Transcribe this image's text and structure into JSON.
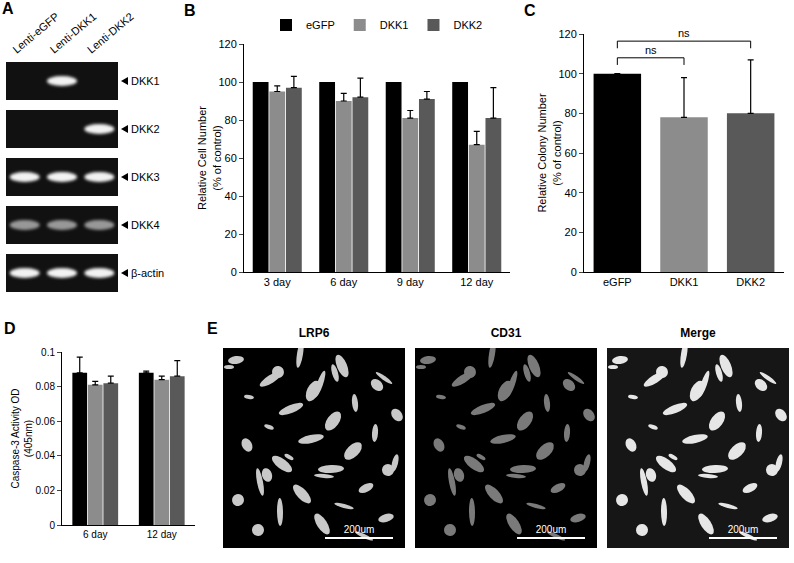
{
  "chart_data": [
    {
      "panel": "B",
      "type": "bar",
      "categories": [
        "3 day",
        "6 day",
        "9 day",
        "12 day"
      ],
      "series": [
        {
          "name": "eGFP",
          "color": "#000000",
          "values": [
            100,
            100,
            100,
            100
          ]
        },
        {
          "name": "DKK1",
          "color": "#8c8c8c",
          "values": [
            95,
            90,
            81,
            67
          ],
          "errors": [
            3,
            4,
            4,
            7
          ]
        },
        {
          "name": "DKK2",
          "color": "#595959",
          "values": [
            97,
            92,
            91,
            81
          ],
          "errors": [
            6,
            10,
            4,
            16
          ]
        }
      ],
      "ylabel": [
        "Relative Cell Number",
        "(% of control)"
      ],
      "ylim": [
        0,
        120
      ],
      "yticks": [
        0,
        20,
        40,
        60,
        80,
        100,
        120
      ],
      "legend": "top"
    },
    {
      "panel": "C",
      "type": "bar",
      "categories": [
        "eGFP",
        "DKK1",
        "DKK2"
      ],
      "values": [
        100,
        78,
        80
      ],
      "errors": [
        null,
        20,
        27
      ],
      "colors": [
        "#000000",
        "#8c8c8c",
        "#595959"
      ],
      "ylabel": [
        "Relative Colony Number",
        "(% of control)"
      ],
      "ylim": [
        0,
        120
      ],
      "yticks": [
        0,
        20,
        40,
        60,
        80,
        100,
        120
      ],
      "comparisons": [
        {
          "from": "eGFP",
          "to": "DKK1",
          "label": "ns"
        },
        {
          "from": "eGFP",
          "to": "DKK2",
          "label": "ns"
        }
      ]
    },
    {
      "panel": "D",
      "type": "bar",
      "categories": [
        "6 day",
        "12 day"
      ],
      "series": [
        {
          "color": "#000000",
          "values": [
            0.088,
            0.088
          ],
          "errors": [
            0.009,
            0.001
          ]
        },
        {
          "color": "#8c8c8c",
          "values": [
            0.081,
            0.084
          ],
          "errors": [
            0.002,
            0.002
          ]
        },
        {
          "color": "#595959",
          "values": [
            0.082,
            0.086
          ],
          "errors": [
            0.004,
            0.009
          ]
        }
      ],
      "ylabel": [
        "Caspase-3 Activity OD",
        "(405nm)"
      ],
      "ylim": [
        0,
        0.1
      ],
      "yticks": [
        0,
        0.02,
        0.04,
        0.06,
        0.08,
        0.1
      ]
    }
  ],
  "gel": {
    "panel": "A",
    "lanes": [
      "Lenti-eGFP",
      "Lenti-DKK1",
      "Lenti-DKK2"
    ],
    "rows": [
      {
        "label": "DKK1",
        "intensity": [
          0,
          1,
          0
        ]
      },
      {
        "label": "DKK2",
        "intensity": [
          0,
          0,
          1
        ]
      },
      {
        "label": "DKK3",
        "intensity": [
          1,
          1,
          1
        ]
      },
      {
        "label": "DKK4",
        "intensity": [
          0.6,
          0.6,
          0.6
        ]
      },
      {
        "label": "β-actin",
        "intensity": [
          1,
          1,
          1
        ]
      }
    ]
  },
  "images": {
    "panel": "E",
    "titles": [
      "LRP6",
      "CD31",
      "Merge"
    ],
    "scale_bar": "200um"
  }
}
